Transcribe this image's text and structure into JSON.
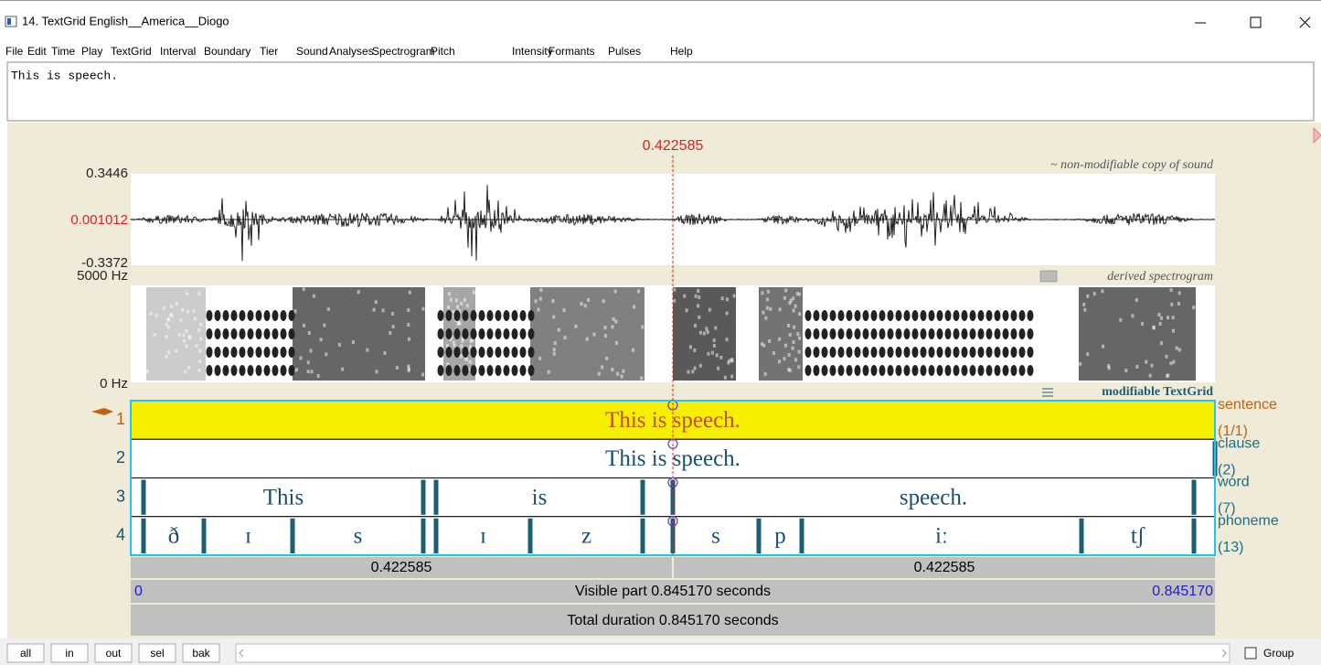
{
  "window": {
    "title": "14. TextGrid English__America__Diogo"
  },
  "menu": [
    "File",
    "Edit",
    "Time",
    "Play",
    "TextGrid",
    "Interval",
    "Boundary",
    "Tier",
    "Sound",
    "Analyses",
    "Spectrogram",
    "Pitch",
    "Intensity",
    "Formants",
    "Pulses",
    "Help"
  ],
  "text_field": "This is speech.",
  "editor": {
    "cursor_time": "0.422585",
    "sound": {
      "label": "~ non-modifiable copy of sound",
      "y_max": "0.3446",
      "y_mid": "0.001012",
      "y_min": "-0.3372"
    },
    "spectrogram": {
      "label": "derived spectrogram",
      "f_max": "5000 Hz",
      "f_min": "0 Hz"
    },
    "textgrid": {
      "label": "modifiable TextGrid",
      "tiers": [
        {
          "number": "1",
          "name": "sentence",
          "count": "(1/1)",
          "intervals": [
            "This is speech."
          ]
        },
        {
          "number": "2",
          "name": "clause",
          "count": "(2)",
          "intervals": [
            "This is speech."
          ]
        },
        {
          "number": "3",
          "name": "word",
          "count": "(7)",
          "intervals": [
            "This",
            "is",
            "speech."
          ]
        },
        {
          "number": "4",
          "name": "phoneme",
          "count": "(13)",
          "intervals": [
            "ð",
            "ɪ",
            "s",
            "ɪ",
            "z",
            "s",
            "p",
            "iː",
            "tʃ"
          ]
        }
      ]
    },
    "selection_parts": [
      "0.422585",
      "0.422585"
    ],
    "visible": {
      "start": "0",
      "label": "Visible part 0.845170 seconds",
      "end": "0.845170"
    },
    "total": "Total duration 0.845170 seconds"
  },
  "buttons": [
    "all",
    "in",
    "out",
    "sel",
    "bak"
  ],
  "group": "Group"
}
